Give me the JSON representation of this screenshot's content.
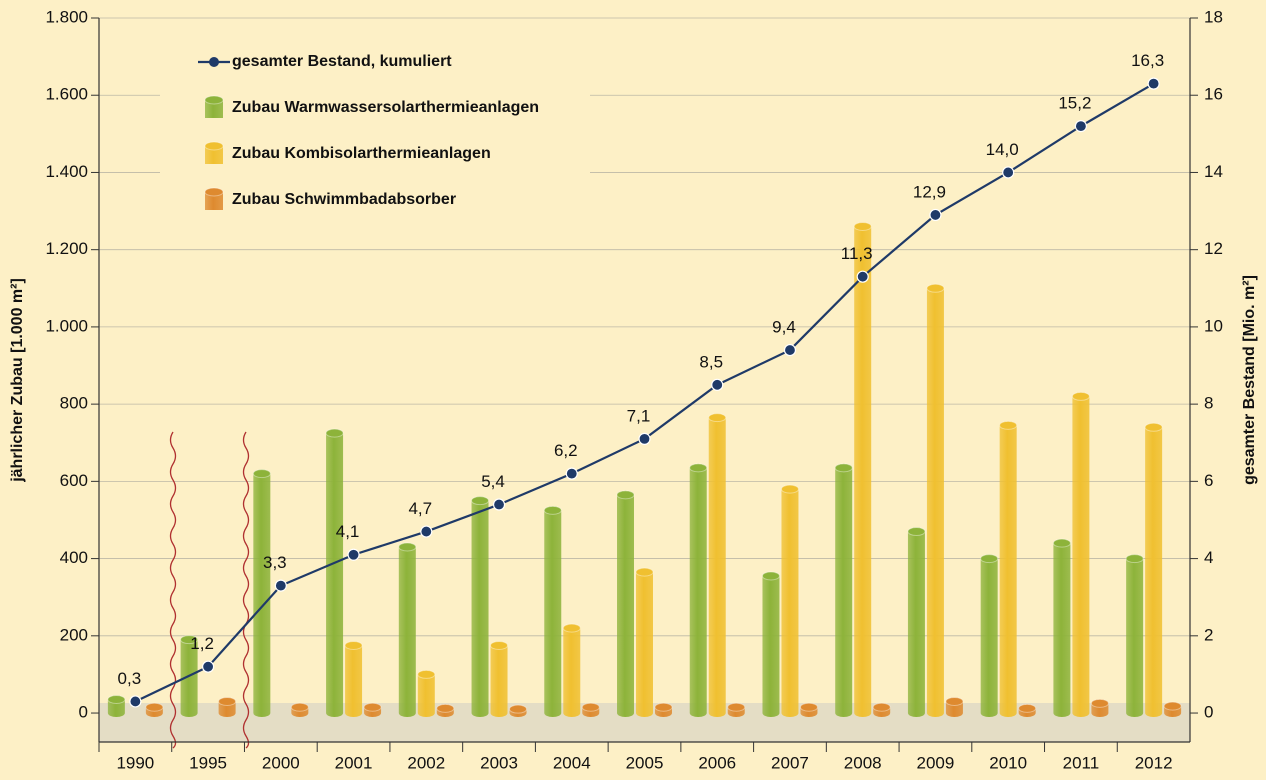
{
  "chart_data": {
    "type": "bar",
    "y_label": "jährlicher Zubau [1.000 m²]",
    "y2_label": "gesamter Bestand [Mio. m²]",
    "categories": [
      "1990",
      "1995",
      "2000",
      "2001",
      "2002",
      "2003",
      "2004",
      "2005",
      "2006",
      "2007",
      "2008",
      "2009",
      "2010",
      "2011",
      "2012"
    ],
    "series": [
      {
        "name": "gesamter Bestand, kumuliert",
        "type": "line",
        "axis": "y2",
        "color": "#1f3a68",
        "values": [
          0.3,
          1.2,
          3.3,
          4.1,
          4.7,
          5.4,
          6.2,
          7.1,
          8.5,
          9.4,
          11.3,
          12.9,
          14.0,
          15.2,
          16.3
        ],
        "value_labels": [
          "0,3",
          "1,2",
          "3,3",
          "4,1",
          "4,7",
          "5,4",
          "6,2",
          "7,1",
          "8,5",
          "9,4",
          "11,3",
          "12,9",
          "14,0",
          "15,2",
          "16,3"
        ]
      },
      {
        "name": "Zubau Warmwassersolarthermieanlagen",
        "type": "bar",
        "color": "#8db33a",
        "values": [
          35,
          190,
          620,
          725,
          430,
          550,
          525,
          565,
          635,
          355,
          635,
          470,
          400,
          440,
          400
        ]
      },
      {
        "name": "Zubau Kombisolarthermieanlagen",
        "type": "bar",
        "color": "#f0c030",
        "values": [
          null,
          null,
          null,
          175,
          100,
          175,
          220,
          365,
          765,
          580,
          1260,
          1100,
          745,
          820,
          740
        ]
      },
      {
        "name": "Zubau Schwimmbadabsorber",
        "type": "bar",
        "color": "#de8a2f",
        "values": [
          15,
          30,
          15,
          15,
          12,
          10,
          15,
          15,
          15,
          15,
          15,
          30,
          12,
          25,
          18
        ]
      }
    ],
    "ylim": [
      -75,
      1800
    ],
    "yticks": [
      0,
      200,
      400,
      600,
      800,
      {
        "value": 1000,
        "label": "1.000"
      },
      {
        "value": 1200,
        "label": "1.200"
      },
      {
        "value": 1400,
        "label": "1.400"
      },
      {
        "value": 1600,
        "label": "1.600"
      },
      {
        "value": 1800,
        "label": "1.800"
      }
    ],
    "y2lim": [
      -0.75,
      18
    ],
    "y2ticks": [
      0,
      2,
      4,
      6,
      8,
      10,
      12,
      14,
      16,
      18
    ],
    "grid": true,
    "legend": "upper left"
  }
}
